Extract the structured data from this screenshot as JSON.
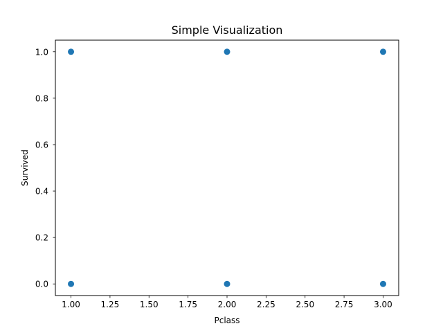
{
  "chart_data": {
    "type": "scatter",
    "title": "Simple Visualization",
    "xlabel": "Pclass",
    "ylabel": "Survived",
    "xlim": [
      0.9,
      3.1
    ],
    "ylim": [
      -0.05,
      1.05
    ],
    "xticks": [
      1.0,
      1.25,
      1.5,
      1.75,
      2.0,
      2.25,
      2.5,
      2.75,
      3.0
    ],
    "xtick_labels": [
      "1.00",
      "1.25",
      "1.50",
      "1.75",
      "2.00",
      "2.25",
      "2.50",
      "2.75",
      "3.00"
    ],
    "yticks": [
      0.0,
      0.2,
      0.4,
      0.6,
      0.8,
      1.0
    ],
    "ytick_labels": [
      "0.0",
      "0.2",
      "0.4",
      "0.6",
      "0.8",
      "1.0"
    ],
    "grid": false,
    "marker_color": "#1f77b4",
    "points": [
      {
        "x": 1,
        "y": 1
      },
      {
        "x": 2,
        "y": 1
      },
      {
        "x": 3,
        "y": 1
      },
      {
        "x": 1,
        "y": 0
      },
      {
        "x": 2,
        "y": 0
      },
      {
        "x": 3,
        "y": 0
      }
    ]
  }
}
